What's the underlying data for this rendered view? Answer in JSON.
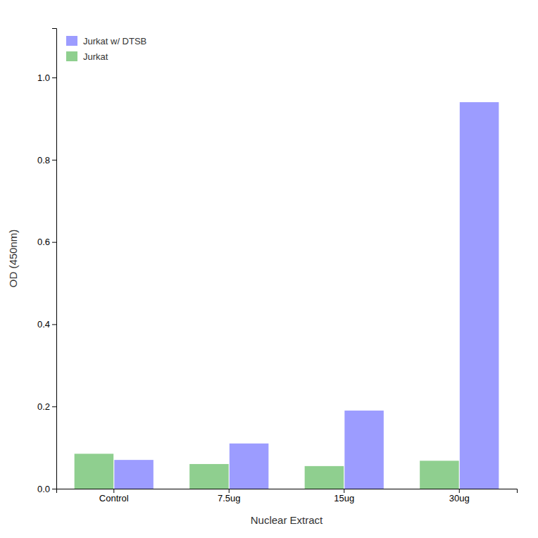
{
  "chart_data": {
    "type": "bar",
    "categories": [
      "Control",
      "7.5ug",
      "15ug",
      "30ug"
    ],
    "series": [
      {
        "name": "Jurkat w/ DTSB",
        "values": [
          0.07,
          0.11,
          0.19,
          0.94
        ],
        "color": "#7b7bff"
      },
      {
        "name": "Jurkat",
        "values": [
          0.085,
          0.06,
          0.055,
          0.068
        ],
        "color": "#6abf6a"
      }
    ],
    "xlabel": "Nuclear Extract",
    "ylabel": "OD (450nm)",
    "ylim": [
      0.0,
      1.12
    ],
    "yticks": [
      {
        "value": 0.0,
        "label": "0.0"
      },
      0.2,
      0.4,
      0.6,
      0.8,
      {
        "value": 1.0,
        "label": "1.0"
      }
    ],
    "legend": "upper left",
    "grid": false
  }
}
